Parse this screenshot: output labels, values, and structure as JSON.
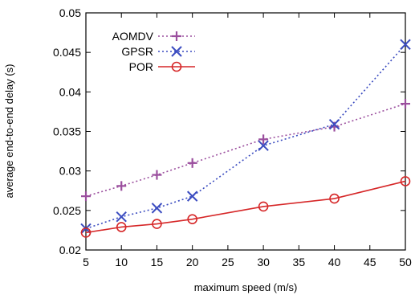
{
  "chart_data": {
    "type": "line",
    "title": "",
    "xlabel": "maximum speed (m/s)",
    "ylabel": "average end-to-end delay (s)",
    "x": [
      5,
      10,
      15,
      20,
      30,
      40,
      50
    ],
    "xlim": [
      5,
      50
    ],
    "ylim": [
      0.02,
      0.05
    ],
    "xticks": [
      "5",
      "10",
      "15",
      "20",
      "25",
      "30",
      "35",
      "40",
      "45",
      "50"
    ],
    "yticks": [
      "0.02",
      "0.025",
      "0.03",
      "0.035",
      "0.04",
      "0.045",
      "0.05"
    ],
    "grid": false,
    "legend": "top-left",
    "series": [
      {
        "name": "AOMDV",
        "color": "#9b4f9e",
        "marker": "plus",
        "dash": "dotted",
        "values": [
          0.0268,
          0.0281,
          0.0295,
          0.031,
          0.034,
          0.0356,
          0.0385
        ]
      },
      {
        "name": "GPSR",
        "color": "#3b4cc0",
        "marker": "cross",
        "dash": "dotted",
        "values": [
          0.0227,
          0.0242,
          0.0253,
          0.0268,
          0.0332,
          0.0359,
          0.046
        ]
      },
      {
        "name": "POR",
        "color": "#d62728",
        "marker": "circle",
        "dash": "solid",
        "values": [
          0.0222,
          0.0229,
          0.0233,
          0.0239,
          0.0255,
          0.0265,
          0.0287
        ]
      }
    ]
  }
}
